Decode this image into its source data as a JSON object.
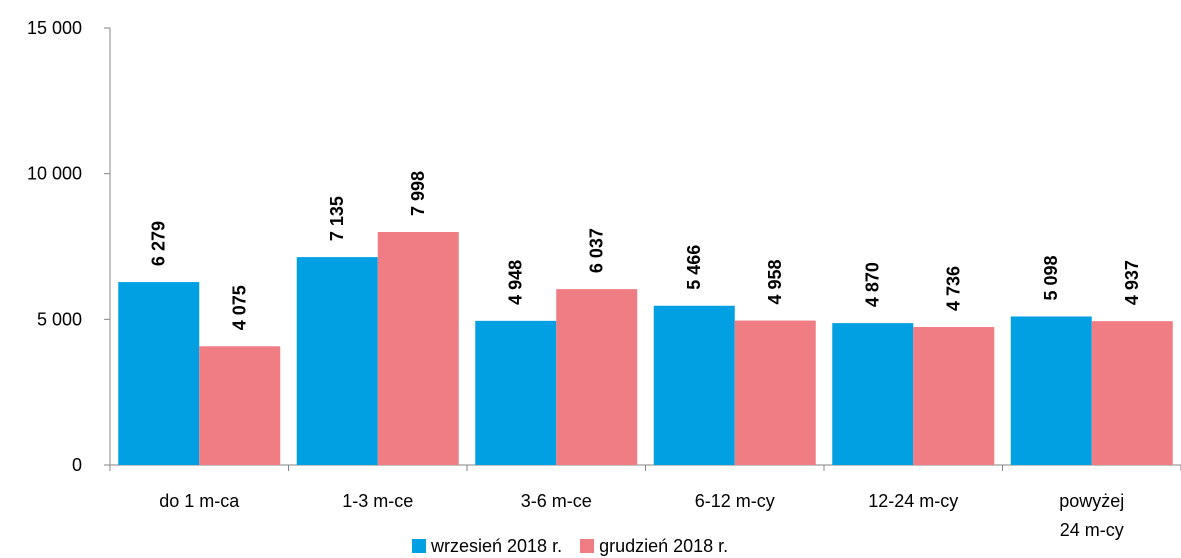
{
  "chart_data": {
    "type": "bar",
    "categories": [
      "do 1 m-ca",
      "1-3 m-ce",
      "3-6 m-ce",
      "6-12 m-cy",
      "12-24 m-cy",
      "powyżej 24 m-cy"
    ],
    "category_lines": [
      [
        "do 1 m-ca"
      ],
      [
        "1-3 m-ce"
      ],
      [
        "3-6 m-ce"
      ],
      [
        "6-12 m-cy"
      ],
      [
        "12-24 m-cy"
      ],
      [
        "powyżej",
        "24 m-cy"
      ]
    ],
    "series": [
      {
        "name": "wrzesień 2018 r.",
        "color": "#00A0E2",
        "values": [
          6279,
          7135,
          4948,
          5466,
          4870,
          5098
        ],
        "labels": [
          "6 279",
          "7 135",
          "4 948",
          "5 466",
          "4 870",
          "5 098"
        ]
      },
      {
        "name": "grudzień 2018 r.",
        "color": "#F07C84",
        "values": [
          4075,
          7998,
          6037,
          4958,
          4736,
          4937
        ],
        "labels": [
          "4 075",
          "7 998",
          "6 037",
          "4 958",
          "4 736",
          "4 937"
        ]
      }
    ],
    "ylim": [
      0,
      15000
    ],
    "yticks": [
      0,
      5000,
      10000,
      15000
    ],
    "ytick_labels": [
      "0",
      "5 000",
      "10 000",
      "15 000"
    ],
    "grid": false,
    "legend_position": "bottom",
    "title": "",
    "xlabel": "",
    "ylabel": ""
  }
}
